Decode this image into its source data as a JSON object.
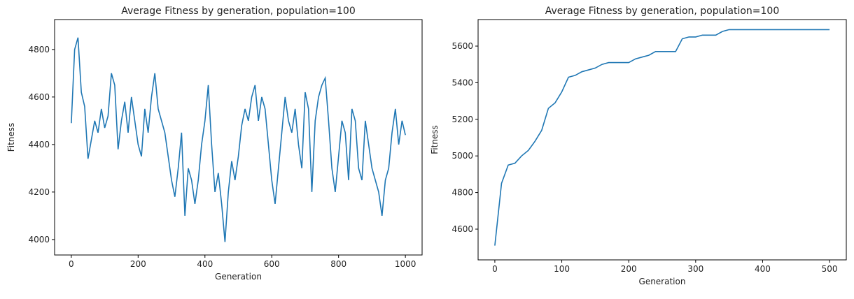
{
  "chart_data": [
    {
      "type": "line",
      "title": "Average Fitness by generation, population=100",
      "x_label": "Generation",
      "y_label": "Fitness",
      "xlim": [
        -50,
        1050
      ],
      "ylim": [
        3935,
        4926
      ],
      "xticks": [
        0,
        200,
        400,
        600,
        800,
        1000
      ],
      "yticks": [
        4000,
        4200,
        4400,
        4600,
        4800
      ],
      "x": [
        0,
        10,
        20,
        30,
        40,
        50,
        60,
        70,
        80,
        90,
        100,
        110,
        120,
        130,
        140,
        150,
        160,
        170,
        180,
        190,
        200,
        210,
        220,
        230,
        240,
        250,
        260,
        270,
        280,
        290,
        300,
        310,
        320,
        330,
        340,
        350,
        360,
        370,
        380,
        390,
        400,
        410,
        420,
        430,
        440,
        450,
        460,
        470,
        480,
        490,
        500,
        510,
        520,
        530,
        540,
        550,
        560,
        570,
        580,
        590,
        600,
        610,
        620,
        630,
        640,
        650,
        660,
        670,
        680,
        690,
        700,
        710,
        720,
        730,
        740,
        750,
        760,
        770,
        780,
        790,
        800,
        810,
        820,
        830,
        840,
        850,
        860,
        870,
        880,
        890,
        900,
        910,
        920,
        930,
        940,
        950,
        960,
        970,
        980,
        990,
        1000
      ],
      "series": [
        {
          "color": "#1f77b4",
          "values": [
            4490,
            4800,
            4850,
            4620,
            4560,
            4340,
            4420,
            4500,
            4450,
            4550,
            4470,
            4520,
            4700,
            4650,
            4380,
            4500,
            4580,
            4450,
            4600,
            4500,
            4400,
            4350,
            4550,
            4450,
            4600,
            4700,
            4550,
            4500,
            4450,
            4350,
            4250,
            4180,
            4300,
            4450,
            4100,
            4300,
            4250,
            4150,
            4250,
            4400,
            4500,
            4650,
            4400,
            4200,
            4280,
            4150,
            3990,
            4200,
            4330,
            4250,
            4350,
            4480,
            4550,
            4500,
            4600,
            4650,
            4500,
            4600,
            4550,
            4400,
            4250,
            4150,
            4300,
            4450,
            4600,
            4500,
            4450,
            4550,
            4400,
            4300,
            4620,
            4550,
            4200,
            4500,
            4600,
            4650,
            4680,
            4500,
            4300,
            4200,
            4350,
            4500,
            4450,
            4250,
            4550,
            4500,
            4300,
            4250,
            4500,
            4400,
            4300,
            4250,
            4200,
            4100,
            4250,
            4300,
            4450,
            4550,
            4400,
            4500,
            4440
          ]
        }
      ]
    },
    {
      "type": "line",
      "title": "Average Fitness by generation, population=100",
      "x_label": "Generation",
      "y_label": "Fitness",
      "xlim": [
        -25,
        525
      ],
      "ylim": [
        4432,
        5745
      ],
      "xticks": [
        0,
        100,
        200,
        300,
        400,
        500
      ],
      "yticks": [
        4600,
        4800,
        5000,
        5200,
        5400,
        5600
      ],
      "x": [
        0,
        10,
        20,
        30,
        40,
        50,
        60,
        70,
        80,
        90,
        100,
        110,
        120,
        130,
        140,
        150,
        160,
        170,
        180,
        190,
        200,
        210,
        220,
        230,
        240,
        250,
        260,
        270,
        280,
        290,
        300,
        310,
        320,
        330,
        340,
        350,
        360,
        370,
        380,
        390,
        400,
        410,
        420,
        430,
        440,
        450,
        460,
        470,
        480,
        490,
        500
      ],
      "series": [
        {
          "color": "#1f77b4",
          "values": [
            4510,
            4850,
            4950,
            4960,
            5000,
            5030,
            5080,
            5140,
            5260,
            5290,
            5350,
            5430,
            5440,
            5460,
            5470,
            5480,
            5500,
            5510,
            5510,
            5510,
            5510,
            5530,
            5540,
            5550,
            5570,
            5570,
            5570,
            5570,
            5640,
            5650,
            5650,
            5660,
            5660,
            5660,
            5680,
            5690,
            5690,
            5690,
            5690,
            5690,
            5690,
            5690,
            5690,
            5690,
            5690,
            5690,
            5690,
            5690,
            5690,
            5690,
            5690
          ]
        }
      ]
    }
  ]
}
